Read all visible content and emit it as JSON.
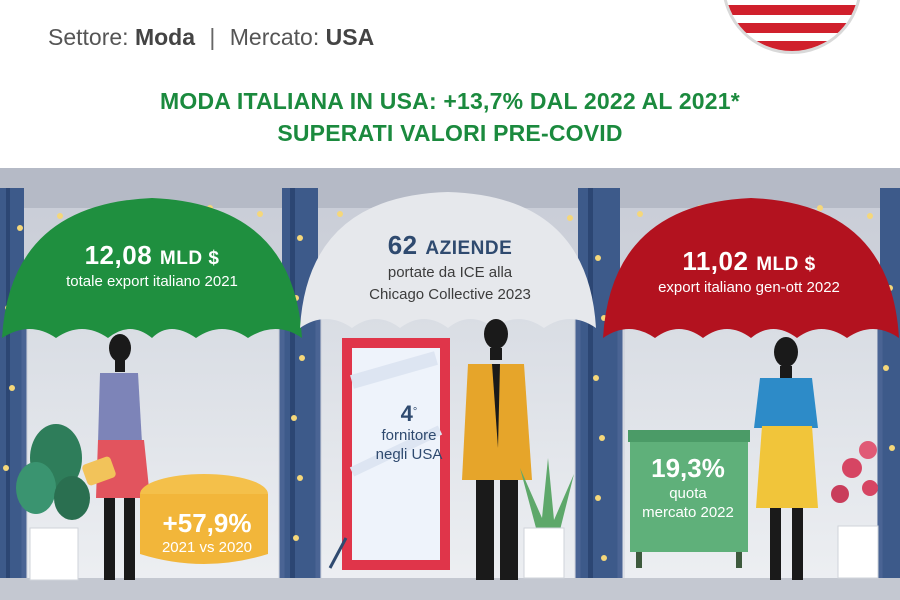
{
  "header": {
    "sector_label": "Settore:",
    "sector_value": "Moda",
    "separator": "|",
    "market_label": "Mercato:",
    "market_value": "USA"
  },
  "headline": {
    "line1": "MODA ITALIANA IN USA: +13,7% DAL 2022 AL 2021*",
    "line2": "SUPERATI VALORI PRE-COVID"
  },
  "canopies": [
    {
      "value": "12,08",
      "unit": "MLD $",
      "description": "totale export italiano 2021",
      "color": "#1f8f3f"
    },
    {
      "value": "62",
      "unit": "AZIENDE",
      "description_line1": "portate da ICE alla",
      "description_line2": "Chicago Collective 2023",
      "color": "#e6e8ec"
    },
    {
      "value": "11,02",
      "unit": "MLD $",
      "description": "export italiano gen-ott 2022",
      "color": "#b3121f"
    }
  ],
  "stats": {
    "growth": {
      "value": "+57,9%",
      "label": "2021 vs 2020",
      "color": "#f2b63a"
    },
    "rank": {
      "value": "4",
      "ordinal": "°",
      "label_line1": "fornitore",
      "label_line2": "negli USA"
    },
    "share": {
      "value": "19,3%",
      "label_line1": "quota",
      "label_line2": "mercato 2022",
      "color": "#5fb07a"
    }
  }
}
